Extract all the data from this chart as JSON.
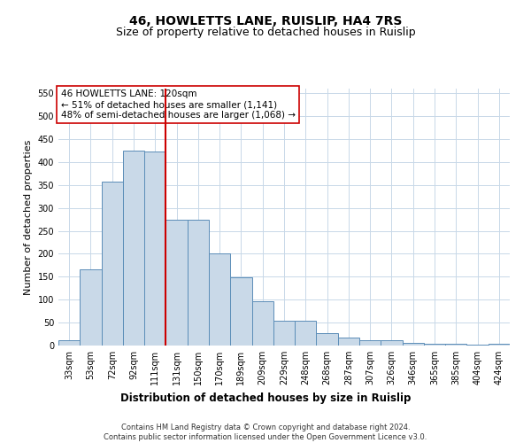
{
  "title": "46, HOWLETTS LANE, RUISLIP, HA4 7RS",
  "subtitle": "Size of property relative to detached houses in Ruislip",
  "xlabel": "Distribution of detached houses by size in Ruislip",
  "ylabel": "Number of detached properties",
  "bar_labels": [
    "33sqm",
    "53sqm",
    "72sqm",
    "92sqm",
    "111sqm",
    "131sqm",
    "150sqm",
    "170sqm",
    "189sqm",
    "209sqm",
    "229sqm",
    "248sqm",
    "268sqm",
    "287sqm",
    "307sqm",
    "326sqm",
    "346sqm",
    "365sqm",
    "385sqm",
    "404sqm",
    "424sqm"
  ],
  "bar_values": [
    12,
    167,
    357,
    425,
    422,
    275,
    275,
    200,
    148,
    97,
    55,
    55,
    27,
    18,
    12,
    12,
    6,
    4,
    4,
    1,
    4
  ],
  "bar_color": "#c9d9e8",
  "bar_edge_color": "#5b8db8",
  "ylim": [
    0,
    560
  ],
  "yticks": [
    0,
    50,
    100,
    150,
    200,
    250,
    300,
    350,
    400,
    450,
    500,
    550
  ],
  "vline_x_index": 4,
  "vline_color": "#cc0000",
  "annotation_line1": "46 HOWLETTS LANE: 120sqm",
  "annotation_line2": "← 51% of detached houses are smaller (1,141)",
  "annotation_line3": "48% of semi-detached houses are larger (1,068) →",
  "annotation_box_color": "#ffffff",
  "annotation_box_edge": "#cc0000",
  "footer_line1": "Contains HM Land Registry data © Crown copyright and database right 2024.",
  "footer_line2": "Contains public sector information licensed under the Open Government Licence v3.0.",
  "bg_color": "#ffffff",
  "grid_color": "#c8d8e8",
  "title_fontsize": 10,
  "subtitle_fontsize": 9,
  "tick_fontsize": 7,
  "ylabel_fontsize": 8,
  "xlabel_fontsize": 8.5,
  "annotation_fontsize": 7.5,
  "footer_fontsize": 6
}
